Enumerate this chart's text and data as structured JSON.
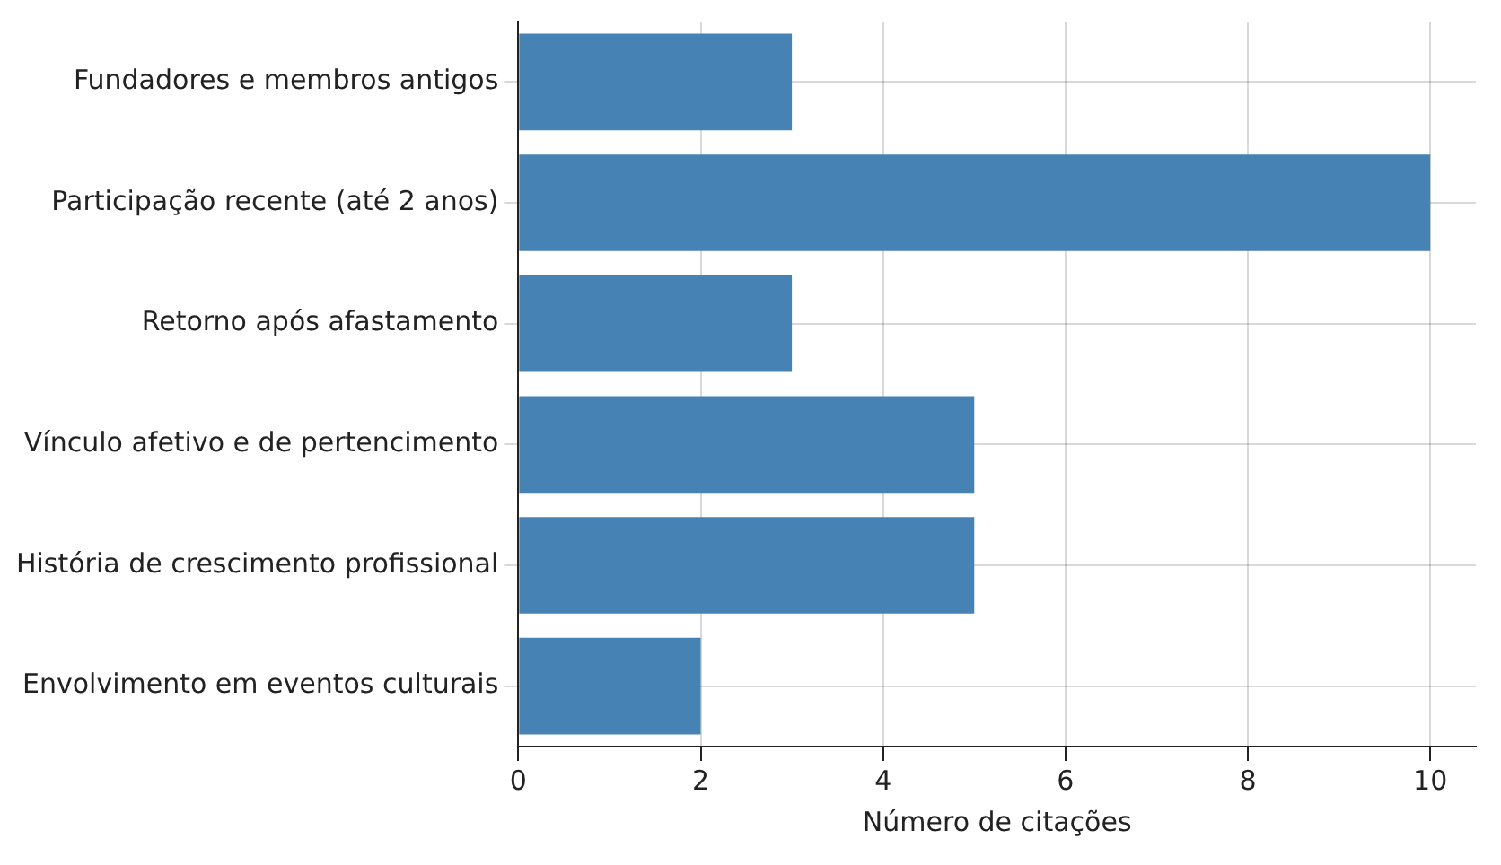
{
  "chart_data": {
    "type": "bar",
    "orientation": "horizontal",
    "xlabel": "Número de citações",
    "categories": [
      "Fundadores e membros antigos",
      "Participação recente (até 2 anos)",
      "Retorno após afastamento",
      "Vínculo afetivo e de pertencimento",
      "História de crescimento profissional",
      "Envolvimento em eventos culturais"
    ],
    "values": [
      3,
      10,
      3,
      5,
      5,
      2
    ],
    "color": "#4682b4",
    "xlim": [
      0,
      10.5
    ],
    "xticks": [
      0,
      2,
      4,
      6,
      8,
      10
    ],
    "grid": true
  }
}
